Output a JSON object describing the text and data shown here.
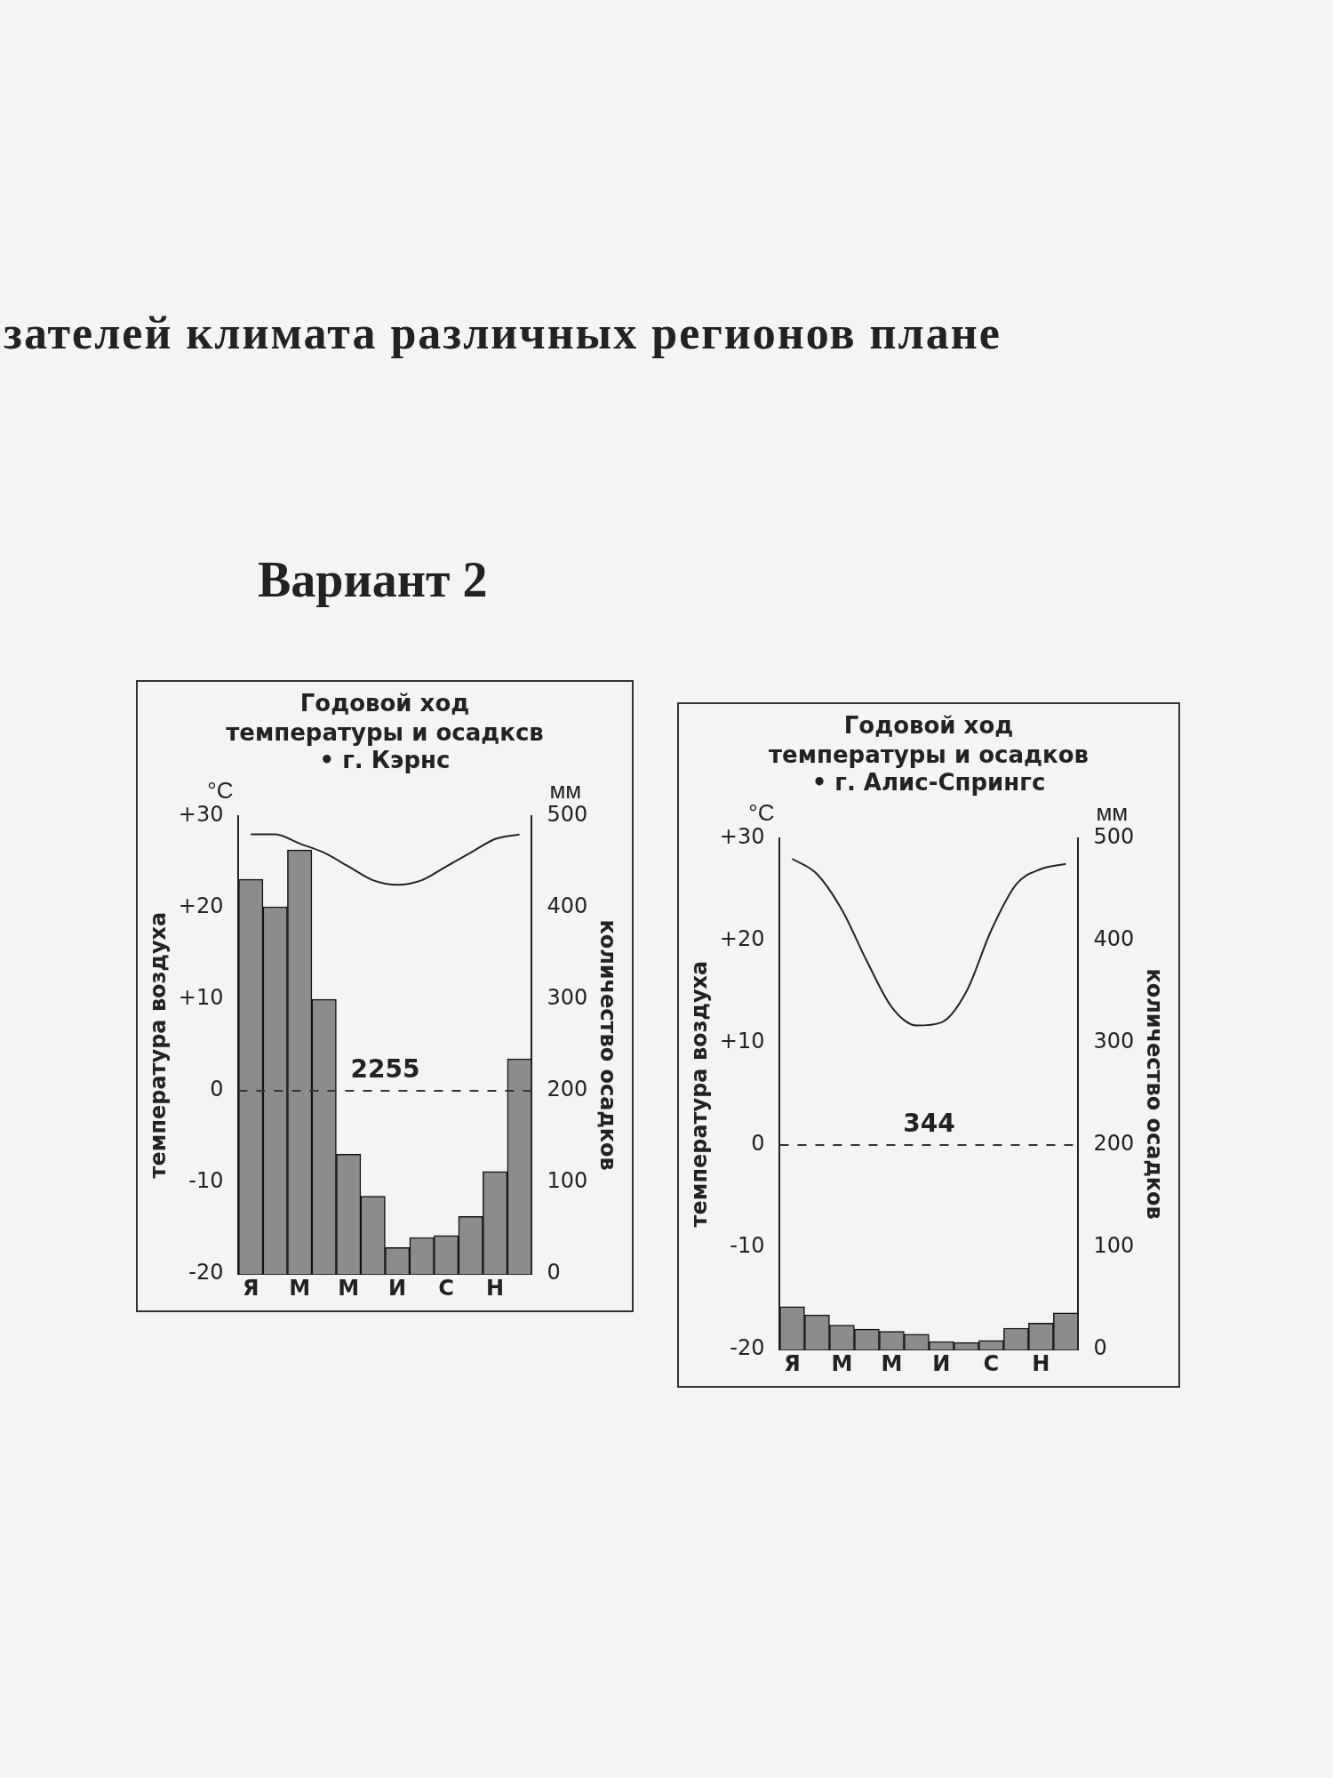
{
  "chart_data": [
    {
      "type": "bar",
      "title": "Годовой ход\nтемпературы и осадксв",
      "subtitle": "• г. Кэрнс",
      "ylabel": "температура воздуха",
      "y2label": "количество осадков",
      "annotations": [
        "°C",
        "мм",
        "2255",
        "зателей климата различных регионов плане",
        "Вариант 2"
      ],
      "categories": [
        "Я",
        null,
        "М",
        null,
        "М",
        null,
        "И",
        null,
        "С",
        null,
        "Н",
        null
      ],
      "series": [
        {
          "axis": "y2",
          "color": "#8c8c8c",
          "values": [
            431,
            401,
            463,
            300,
            131,
            85,
            29,
            40,
            42,
            63,
            112,
            235
          ]
        },
        {
          "type": "line",
          "axis": "y",
          "color": "#222222",
          "values": [
            28,
            28,
            27,
            26,
            24.5,
            23,
            22.5,
            23,
            24.5,
            26,
            27.5,
            28
          ]
        }
      ],
      "ylim": [
        -20,
        30
      ],
      "yticks": [
        {
          "value": 30,
          "label": "+30"
        },
        {
          "value": 20,
          "label": "+20"
        },
        {
          "value": 10,
          "label": "+10"
        },
        0,
        -10,
        -20
      ],
      "y2lim": [
        0,
        500
      ],
      "y2ticks": [
        0,
        100,
        200,
        300,
        400,
        500
      ],
      "ref_lines": [
        {
          "axis": "y",
          "value": 0,
          "color": "#333333",
          "line_style": "dashed"
        }
      ],
      "marker": "none",
      "grid": false,
      "legend": false
    },
    {
      "type": "bar",
      "title": "Годовой ход\nтемпературы и осадков",
      "subtitle": "• г. Алис-Спрингс",
      "ylabel": "температура воздуха",
      "y2label": "количество осадков",
      "annotations": [
        "°C",
        "мм",
        "344"
      ],
      "categories": [
        "Я",
        null,
        "М",
        null,
        "М",
        null,
        "И",
        null,
        "С",
        null,
        "Н",
        null
      ],
      "series": [
        {
          "axis": "y2",
          "color": "#8c8c8c",
          "values": [
            42,
            34,
            24,
            20,
            18,
            15,
            8,
            7,
            9,
            21,
            26,
            36
          ]
        },
        {
          "type": "line",
          "axis": "y",
          "color": "#222222",
          "values": [
            28,
            26.5,
            23,
            18,
            13.5,
            11.7,
            12,
            15,
            21,
            25.5,
            27,
            27.5
          ]
        }
      ],
      "ylim": [
        -20,
        30
      ],
      "yticks": [
        {
          "value": 30,
          "label": "+30"
        },
        {
          "value": 20,
          "label": "+20"
        },
        {
          "value": 10,
          "label": "+10"
        },
        0,
        -10,
        -20
      ],
      "y2lim": [
        0,
        500
      ],
      "y2ticks": [
        0,
        100,
        200,
        300,
        400,
        500
      ],
      "ref_lines": [
        {
          "axis": "y",
          "value": 0,
          "color": "#333333",
          "line_style": "dashed"
        }
      ],
      "marker": "none",
      "grid": false,
      "legend": false
    }
  ]
}
